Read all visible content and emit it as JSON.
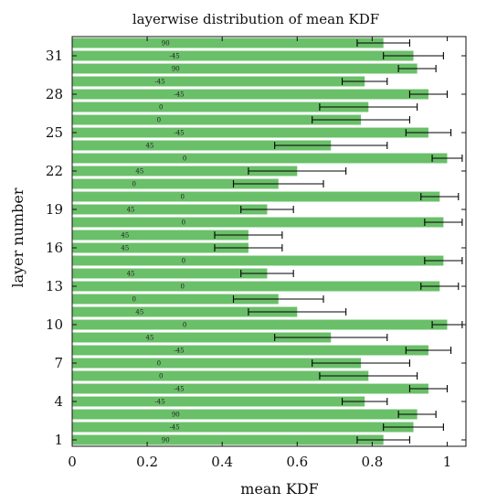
{
  "chart_data": {
    "type": "bar",
    "orientation": "horizontal",
    "title": "layerwise distribution of mean KDF",
    "xlabel": "mean KDF",
    "ylabel": "layer number",
    "xlim": [
      0,
      1.05
    ],
    "ylim": [
      0.5,
      32.5
    ],
    "xticks": [
      0,
      0.2,
      0.4,
      0.6,
      0.8,
      1
    ],
    "xtick_labels": [
      "0",
      "0.2",
      "0.4",
      "0.6",
      "0.8",
      "1"
    ],
    "yticks": [
      1,
      4,
      7,
      10,
      13,
      16,
      19,
      22,
      25,
      28,
      31
    ],
    "ytick_labels": [
      "1",
      "4",
      "7",
      "10",
      "13",
      "16",
      "19",
      "22",
      "25",
      "28",
      "31"
    ],
    "bar_color": "#6abf69",
    "categories": [
      1,
      2,
      3,
      4,
      5,
      6,
      7,
      8,
      9,
      10,
      11,
      12,
      13,
      14,
      15,
      16,
      17,
      18,
      19,
      20,
      21,
      22,
      23,
      24,
      25,
      26,
      27,
      28,
      29,
      30,
      31,
      32
    ],
    "values": [
      0.83,
      0.91,
      0.92,
      0.78,
      0.95,
      0.79,
      0.77,
      0.95,
      0.69,
      1.0,
      0.6,
      0.55,
      0.98,
      0.52,
      0.99,
      0.47,
      0.47,
      0.99,
      0.52,
      0.98,
      0.55,
      0.6,
      1.0,
      0.69,
      0.95,
      0.77,
      0.79,
      0.95,
      0.78,
      0.92,
      0.91,
      0.83
    ],
    "errors": [
      0.07,
      0.08,
      0.05,
      0.06,
      0.05,
      0.13,
      0.13,
      0.06,
      0.15,
      0.04,
      0.13,
      0.12,
      0.05,
      0.07,
      0.05,
      0.09,
      0.09,
      0.05,
      0.07,
      0.05,
      0.12,
      0.13,
      0.04,
      0.15,
      0.06,
      0.13,
      0.13,
      0.05,
      0.06,
      0.05,
      0.08,
      0.07
    ],
    "bar_labels": [
      "90",
      "-45",
      "90",
      "-45",
      "-45",
      "0",
      "0",
      "-45",
      "45",
      "0",
      "45",
      "0",
      "0",
      "45",
      "0",
      "45",
      "45",
      "0",
      "45",
      "0",
      "0",
      "45",
      "0",
      "45",
      "-45",
      "0",
      "0",
      "-45",
      "-45",
      "90",
      "-45",
      "90"
    ]
  }
}
